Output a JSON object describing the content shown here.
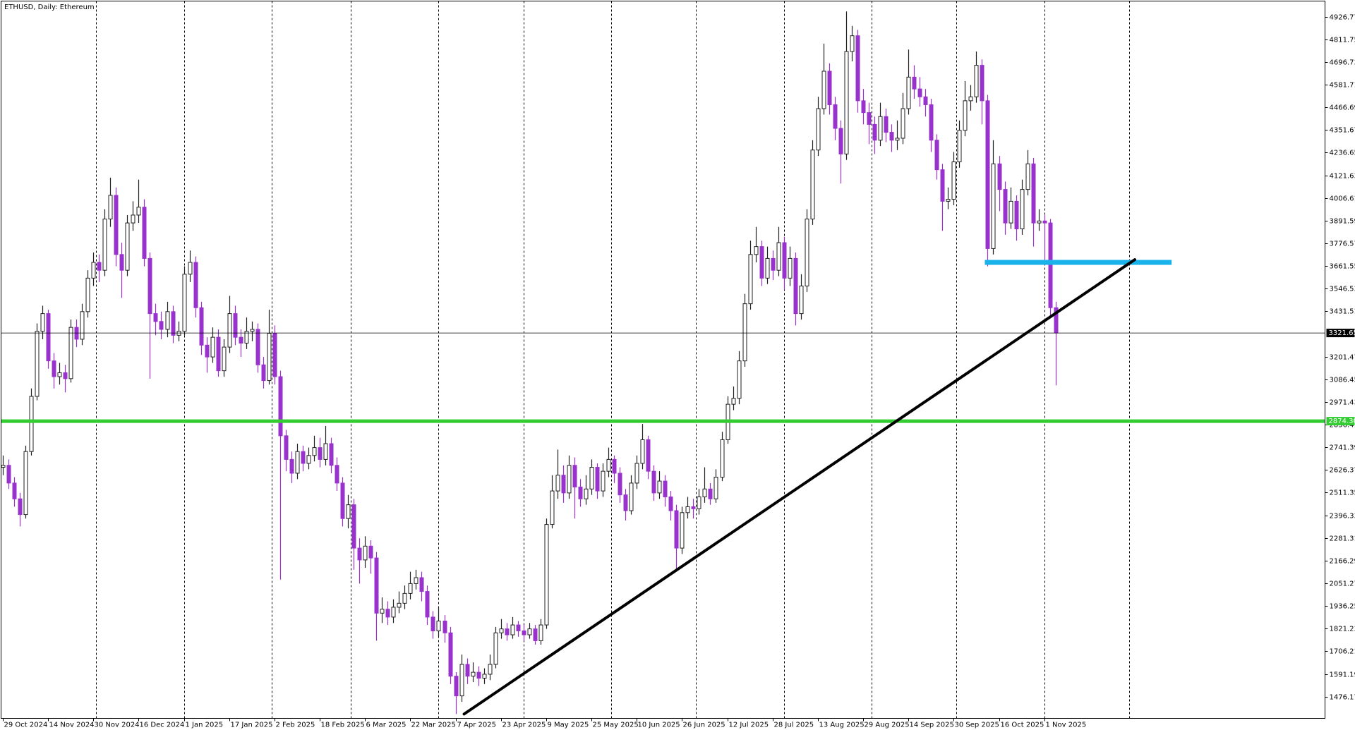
{
  "chart_data": {
    "type": "candlestick",
    "title": "ETHUSD, Daily: Ethereum",
    "up_color": "#202020",
    "down_color": "#9932cc",
    "ohlc": [
      [
        2640,
        2700,
        2600,
        2650
      ],
      [
        2650,
        2680,
        2530,
        2560
      ],
      [
        2560,
        2590,
        2440,
        2480
      ],
      [
        2480,
        2510,
        2340,
        2400
      ],
      [
        2400,
        2750,
        2380,
        2720
      ],
      [
        2720,
        3040,
        2700,
        3000
      ],
      [
        3000,
        3370,
        2980,
        3330
      ],
      [
        3330,
        3460,
        3290,
        3420
      ],
      [
        3420,
        3440,
        3140,
        3180
      ],
      [
        3180,
        3220,
        3040,
        3100
      ],
      [
        3100,
        3170,
        3060,
        3120
      ],
      [
        3120,
        3160,
        3020,
        3090
      ],
      [
        3090,
        3390,
        3070,
        3350
      ],
      [
        3350,
        3390,
        3250,
        3290
      ],
      [
        3290,
        3470,
        3260,
        3430
      ],
      [
        3430,
        3640,
        3400,
        3600
      ],
      [
        3600,
        3730,
        3560,
        3680
      ],
      [
        3680,
        3720,
        3580,
        3640
      ],
      [
        3640,
        3950,
        3610,
        3900
      ],
      [
        3900,
        4110,
        3860,
        4020
      ],
      [
        4020,
        4060,
        3660,
        3720
      ],
      [
        3720,
        3780,
        3500,
        3640
      ],
      [
        3640,
        3920,
        3610,
        3880
      ],
      [
        3880,
        3990,
        3840,
        3920
      ],
      [
        3920,
        4100,
        3880,
        3960
      ],
      [
        3960,
        4000,
        3660,
        3700
      ],
      [
        3700,
        3730,
        3090,
        3420
      ],
      [
        3420,
        3470,
        3310,
        3380
      ],
      [
        3380,
        3430,
        3290,
        3340
      ],
      [
        3340,
        3480,
        3300,
        3430
      ],
      [
        3430,
        3460,
        3270,
        3310
      ],
      [
        3310,
        3380,
        3280,
        3330
      ],
      [
        3330,
        3660,
        3310,
        3620
      ],
      [
        3620,
        3740,
        3580,
        3680
      ],
      [
        3680,
        3710,
        3400,
        3450
      ],
      [
        3450,
        3480,
        3210,
        3260
      ],
      [
        3260,
        3300,
        3120,
        3200
      ],
      [
        3200,
        3350,
        3170,
        3300
      ],
      [
        3300,
        3340,
        3100,
        3130
      ],
      [
        3130,
        3290,
        3100,
        3250
      ],
      [
        3250,
        3510,
        3220,
        3420
      ],
      [
        3420,
        3460,
        3260,
        3300
      ],
      [
        3300,
        3340,
        3200,
        3270
      ],
      [
        3270,
        3400,
        3240,
        3330
      ],
      [
        3330,
        3380,
        3280,
        3340
      ],
      [
        3340,
        3370,
        3120,
        3160
      ],
      [
        3160,
        3200,
        3040,
        3080
      ],
      [
        3080,
        3440,
        3060,
        3320
      ],
      [
        3320,
        3360,
        3060,
        3100
      ],
      [
        3100,
        3130,
        2070,
        2800
      ],
      [
        2800,
        2830,
        2620,
        2680
      ],
      [
        2680,
        2720,
        2560,
        2610
      ],
      [
        2610,
        2760,
        2580,
        2720
      ],
      [
        2720,
        2750,
        2620,
        2660
      ],
      [
        2660,
        2740,
        2630,
        2700
      ],
      [
        2700,
        2800,
        2670,
        2740
      ],
      [
        2740,
        2790,
        2640,
        2680
      ],
      [
        2680,
        2850,
        2650,
        2760
      ],
      [
        2760,
        2790,
        2610,
        2650
      ],
      [
        2650,
        2690,
        2520,
        2560
      ],
      [
        2560,
        2590,
        2340,
        2380
      ],
      [
        2380,
        2500,
        2330,
        2450
      ],
      [
        2450,
        2480,
        2120,
        2230
      ],
      [
        2230,
        2280,
        2050,
        2170
      ],
      [
        2170,
        2290,
        2130,
        2240
      ],
      [
        2240,
        2270,
        2100,
        2180
      ],
      [
        2180,
        2210,
        1760,
        1900
      ],
      [
        1900,
        1980,
        1850,
        1920
      ],
      [
        1920,
        1960,
        1840,
        1880
      ],
      [
        1880,
        1970,
        1850,
        1930
      ],
      [
        1930,
        2010,
        1900,
        1950
      ],
      [
        1950,
        2040,
        1920,
        2000
      ],
      [
        2000,
        2110,
        1970,
        2050
      ],
      [
        2050,
        2120,
        2020,
        2080
      ],
      [
        2080,
        2110,
        1960,
        2010
      ],
      [
        2010,
        2040,
        1840,
        1880
      ],
      [
        1880,
        1910,
        1770,
        1810
      ],
      [
        1810,
        1930,
        1780,
        1860
      ],
      [
        1860,
        1890,
        1750,
        1800
      ],
      [
        1800,
        1830,
        1540,
        1580
      ],
      [
        1580,
        1600,
        1388,
        1480
      ],
      [
        1480,
        1690,
        1450,
        1640
      ],
      [
        1640,
        1670,
        1540,
        1580
      ],
      [
        1580,
        1650,
        1550,
        1600
      ],
      [
        1600,
        1630,
        1530,
        1570
      ],
      [
        1570,
        1620,
        1540,
        1590
      ],
      [
        1590,
        1690,
        1560,
        1640
      ],
      [
        1640,
        1830,
        1620,
        1800
      ],
      [
        1800,
        1870,
        1770,
        1820
      ],
      [
        1820,
        1850,
        1760,
        1790
      ],
      [
        1790,
        1880,
        1770,
        1840
      ],
      [
        1840,
        1860,
        1780,
        1810
      ],
      [
        1810,
        1840,
        1760,
        1790
      ],
      [
        1790,
        1850,
        1770,
        1820
      ],
      [
        1820,
        1840,
        1740,
        1760
      ],
      [
        1760,
        1870,
        1740,
        1840
      ],
      [
        1840,
        2380,
        1820,
        2350
      ],
      [
        2350,
        2600,
        2330,
        2520
      ],
      [
        2520,
        2730,
        2480,
        2600
      ],
      [
        2600,
        2650,
        2460,
        2510
      ],
      [
        2510,
        2700,
        2480,
        2650
      ],
      [
        2650,
        2690,
        2380,
        2540
      ],
      [
        2540,
        2580,
        2440,
        2480
      ],
      [
        2480,
        2600,
        2450,
        2530
      ],
      [
        2530,
        2680,
        2500,
        2640
      ],
      [
        2640,
        2660,
        2480,
        2520
      ],
      [
        2520,
        2660,
        2490,
        2620
      ],
      [
        2620,
        2740,
        2590,
        2680
      ],
      [
        2680,
        2700,
        2560,
        2610
      ],
      [
        2610,
        2640,
        2460,
        2500
      ],
      [
        2500,
        2530,
        2370,
        2420
      ],
      [
        2420,
        2600,
        2400,
        2560
      ],
      [
        2560,
        2700,
        2530,
        2660
      ],
      [
        2660,
        2860,
        2630,
        2780
      ],
      [
        2780,
        2800,
        2580,
        2620
      ],
      [
        2620,
        2650,
        2470,
        2510
      ],
      [
        2510,
        2620,
        2480,
        2570
      ],
      [
        2570,
        2600,
        2440,
        2490
      ],
      [
        2490,
        2520,
        2370,
        2420
      ],
      [
        2420,
        2450,
        2120,
        2230
      ],
      [
        2230,
        2440,
        2200,
        2410
      ],
      [
        2410,
        2490,
        2380,
        2440
      ],
      [
        2440,
        2480,
        2380,
        2430
      ],
      [
        2430,
        2530,
        2400,
        2490
      ],
      [
        2490,
        2640,
        2460,
        2530
      ],
      [
        2530,
        2560,
        2450,
        2480
      ],
      [
        2480,
        2630,
        2460,
        2590
      ],
      [
        2590,
        2820,
        2570,
        2780
      ],
      [
        2780,
        3000,
        2760,
        2960
      ],
      [
        2960,
        3050,
        2930,
        2990
      ],
      [
        2990,
        3230,
        2960,
        3180
      ],
      [
        3180,
        3520,
        3150,
        3470
      ],
      [
        3470,
        3790,
        3440,
        3720
      ],
      [
        3720,
        3860,
        3680,
        3760
      ],
      [
        3760,
        3790,
        3560,
        3600
      ],
      [
        3600,
        3760,
        3570,
        3700
      ],
      [
        3700,
        3740,
        3590,
        3640
      ],
      [
        3640,
        3860,
        3610,
        3780
      ],
      [
        3780,
        3810,
        3540,
        3600
      ],
      [
        3600,
        3760,
        3560,
        3700
      ],
      [
        3700,
        3730,
        3360,
        3420
      ],
      [
        3420,
        3620,
        3390,
        3560
      ],
      [
        3560,
        3950,
        3530,
        3900
      ],
      [
        3900,
        4300,
        3870,
        4250
      ],
      [
        4250,
        4520,
        4220,
        4460
      ],
      [
        4460,
        4790,
        4430,
        4650
      ],
      [
        4650,
        4690,
        4430,
        4480
      ],
      [
        4480,
        4520,
        4300,
        4360
      ],
      [
        4360,
        4400,
        4080,
        4230
      ],
      [
        4230,
        4953,
        4200,
        4750
      ],
      [
        4750,
        4880,
        4700,
        4830
      ],
      [
        4830,
        4860,
        4440,
        4500
      ],
      [
        4500,
        4560,
        4380,
        4440
      ],
      [
        4440,
        4490,
        4280,
        4380
      ],
      [
        4380,
        4420,
        4230,
        4300
      ],
      [
        4300,
        4490,
        4270,
        4420
      ],
      [
        4420,
        4460,
        4290,
        4340
      ],
      [
        4340,
        4380,
        4240,
        4300
      ],
      [
        4300,
        4400,
        4250,
        4310
      ],
      [
        4310,
        4540,
        4280,
        4460
      ],
      [
        4460,
        4760,
        4430,
        4620
      ],
      [
        4620,
        4680,
        4510,
        4560
      ],
      [
        4560,
        4620,
        4470,
        4520
      ],
      [
        4520,
        4560,
        4420,
        4480
      ],
      [
        4480,
        4510,
        4240,
        4300
      ],
      [
        4300,
        4330,
        4100,
        4150
      ],
      [
        4150,
        4180,
        3840,
        3990
      ],
      [
        3990,
        4060,
        3950,
        4000
      ],
      [
        4000,
        4240,
        3970,
        4190
      ],
      [
        4190,
        4400,
        4160,
        4350
      ],
      [
        4350,
        4600,
        4320,
        4500
      ],
      [
        4500,
        4580,
        4450,
        4520
      ],
      [
        4520,
        4750,
        4490,
        4680
      ],
      [
        4680,
        4710,
        4380,
        4500
      ],
      [
        4500,
        4530,
        3660,
        3750
      ],
      [
        3750,
        4300,
        3720,
        4180
      ],
      [
        4180,
        4220,
        3940,
        4050
      ],
      [
        4050,
        4090,
        3820,
        3880
      ],
      [
        3880,
        4060,
        3850,
        3990
      ],
      [
        3990,
        4020,
        3790,
        3850
      ],
      [
        3850,
        4100,
        3820,
        4050
      ],
      [
        4050,
        4250,
        4020,
        4180
      ],
      [
        4180,
        4210,
        3760,
        3880
      ],
      [
        3880,
        3950,
        3840,
        3890
      ],
      [
        3890,
        3920,
        3690,
        3880
      ],
      [
        3880,
        3900,
        3400,
        3450
      ],
      [
        3450,
        3480,
        3056,
        3321.65
      ]
    ],
    "xlim": [
      -0.3,
      233.6
    ],
    "xticks": [
      {
        "value": 0,
        "label": "29 Oct 2024"
      },
      {
        "value": 8,
        "label": "14 Nov 2024"
      },
      {
        "value": 16,
        "label": "30 Nov 2024"
      },
      {
        "value": 24,
        "label": "16 Dec 2024"
      },
      {
        "value": 32,
        "label": "1 Jan 2025"
      },
      {
        "value": 40,
        "label": "17 Jan 2025"
      },
      {
        "value": 48,
        "label": "2 Feb 2025"
      },
      {
        "value": 56,
        "label": "18 Feb 2025"
      },
      {
        "value": 64,
        "label": "6 Mar 2025"
      },
      {
        "value": 72,
        "label": "22 Mar 2025"
      },
      {
        "value": 80,
        "label": "7 Apr 2025"
      },
      {
        "value": 88,
        "label": "23 Apr 2025"
      },
      {
        "value": 96,
        "label": "9 May 2025"
      },
      {
        "value": 104,
        "label": "25 May 2025"
      },
      {
        "value": 112,
        "label": "10 Jun 2025"
      },
      {
        "value": 120,
        "label": "26 Jun 2025"
      },
      {
        "value": 128,
        "label": "12 Jul 2025"
      },
      {
        "value": 136,
        "label": "28 Jul 2025"
      },
      {
        "value": 144,
        "label": "13 Aug 2025"
      },
      {
        "value": 152,
        "label": "29 Aug 2025"
      },
      {
        "value": 160,
        "label": "14 Sep 2025"
      },
      {
        "value": 168,
        "label": "30 Sep 2025"
      },
      {
        "value": 176,
        "label": "16 Oct 2025"
      },
      {
        "value": 184,
        "label": "1 Nov 2025"
      }
    ],
    "vgrid": [
      16.5,
      32,
      47.5,
      61.5,
      77,
      92,
      107.5,
      122.5,
      138,
      153.5,
      168.5,
      184,
      199
    ],
    "ylim": [
      1366,
      5006
    ],
    "yticks": [
      1476.17,
      1591.19,
      1706.21,
      1821.23,
      1936.25,
      2051.27,
      2166.29,
      2281.31,
      2396.33,
      2511.35,
      2626.37,
      2741.39,
      2856.41,
      2971.43,
      3086.45,
      3201.47,
      3431.51,
      3546.53,
      3661.55,
      3776.57,
      3891.59,
      4006.61,
      4121.63,
      4236.65,
      4351.67,
      4466.69,
      4581.71,
      4696.73,
      4811.75,
      4926.77
    ],
    "price_line": 3321.65,
    "support_line": {
      "value": {
        "value": 2874.3,
        "label": "2874.30"
      },
      "color": "#33cc33"
    },
    "resistance_zone": {
      "value": 3680,
      "from": 173.5,
      "to": 206.5,
      "color": "#1ab2ea"
    },
    "trendline": {
      "start": [
        81.5,
        1388
      ],
      "end": [
        200,
        3694
      ],
      "color": "#000000"
    }
  }
}
